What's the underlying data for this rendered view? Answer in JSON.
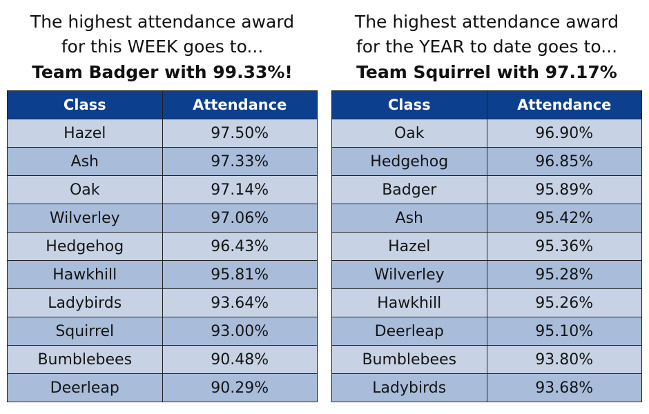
{
  "weekly": {
    "heading_line1": "The highest attendance award",
    "heading_line2": "for this WEEK goes to...",
    "winner_line": "Team Badger with 99.33%!",
    "col_class": "Class",
    "col_attendance": "Attendance",
    "rows": [
      {
        "class": "Hazel",
        "attendance": "97.50%"
      },
      {
        "class": "Ash",
        "attendance": "97.33%"
      },
      {
        "class": "Oak",
        "attendance": "97.14%"
      },
      {
        "class": "Wilverley",
        "attendance": "97.06%"
      },
      {
        "class": "Hedgehog",
        "attendance": "96.43%"
      },
      {
        "class": "Hawkhill",
        "attendance": "95.81%"
      },
      {
        "class": "Ladybirds",
        "attendance": "93.64%"
      },
      {
        "class": "Squirrel",
        "attendance": "93.00%"
      },
      {
        "class": "Bumblebees",
        "attendance": "90.48%"
      },
      {
        "class": "Deerleap",
        "attendance": "90.29%"
      }
    ]
  },
  "yearly": {
    "heading_line1": "The highest attendance award",
    "heading_line2": "for the YEAR to date goes to...",
    "winner_line": "Team Squirrel with 97.17%",
    "col_class": "Class",
    "col_attendance": "Attendance",
    "rows": [
      {
        "class": "Oak",
        "attendance": "96.90%"
      },
      {
        "class": "Hedgehog",
        "attendance": "96.85%"
      },
      {
        "class": "Badger",
        "attendance": "95.89%"
      },
      {
        "class": "Ash",
        "attendance": "95.42%"
      },
      {
        "class": "Hazel",
        "attendance": "95.36%"
      },
      {
        "class": "Wilverley",
        "attendance": "95.28%"
      },
      {
        "class": "Hawkhill",
        "attendance": "95.26%"
      },
      {
        "class": "Deerleap",
        "attendance": "95.10%"
      },
      {
        "class": "Bumblebees",
        "attendance": "93.80%"
      },
      {
        "class": "Ladybirds",
        "attendance": "93.68%"
      }
    ]
  },
  "colors": {
    "header_bg": "#0d3f8f",
    "row_light": "#c7d3e4",
    "row_dark": "#a9bddb"
  }
}
